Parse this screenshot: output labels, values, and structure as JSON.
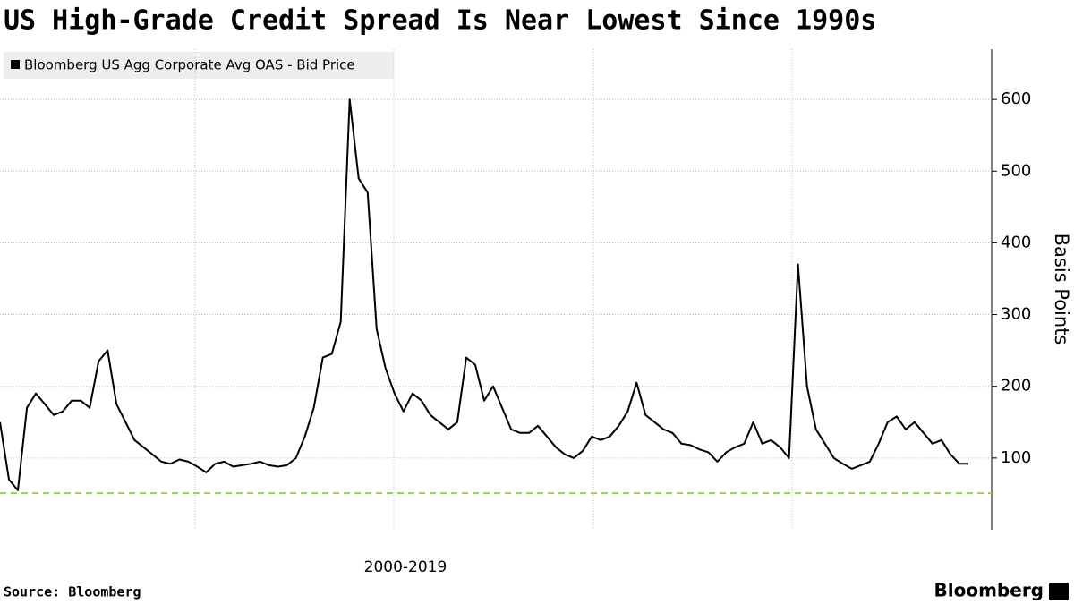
{
  "chart_data": {
    "type": "line",
    "title": "US High-Grade Credit Spread Is Near Lowest Since 1990s",
    "x_label": "2000-2019",
    "y_label": "Basis Points",
    "source": "Source: Bloomberg",
    "brand": "Bloomberg",
    "series": [
      {
        "name": "Bloomberg US Agg Corporate Avg OAS - Bid Price",
        "color": "#000000",
        "values": [
          150,
          70,
          55,
          170,
          190,
          175,
          160,
          165,
          180,
          180,
          170,
          235,
          250,
          175,
          150,
          125,
          115,
          105,
          95,
          92,
          98,
          95,
          88,
          80,
          92,
          95,
          88,
          90,
          92,
          95,
          90,
          88,
          90,
          100,
          130,
          170,
          240,
          245,
          290,
          600,
          490,
          470,
          280,
          225,
          190,
          165,
          190,
          180,
          160,
          150,
          140,
          150,
          240,
          230,
          180,
          200,
          170,
          140,
          135,
          135,
          145,
          130,
          115,
          105,
          100,
          110,
          130,
          125,
          130,
          145,
          165,
          205,
          160,
          150,
          140,
          135,
          120,
          118,
          112,
          108,
          95,
          108,
          115,
          120,
          150,
          120,
          125,
          115,
          100,
          370,
          200,
          140,
          120,
          100,
          92,
          85,
          90,
          95,
          120,
          150,
          158,
          140,
          150,
          135,
          120,
          125,
          105,
          92,
          92
        ]
      }
    ],
    "reference_line": {
      "value": 51,
      "color": "#8fd14f"
    },
    "ylim": [
      0,
      670
    ],
    "yticks": [
      100,
      200,
      300,
      400,
      500,
      600
    ],
    "grid": true
  }
}
